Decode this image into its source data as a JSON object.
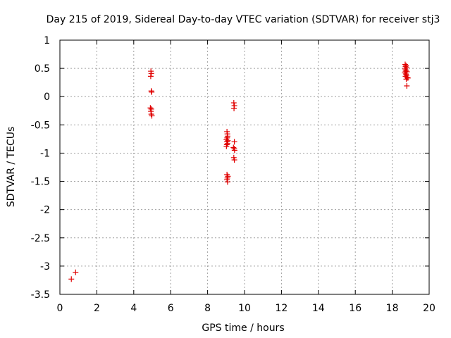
{
  "chart_data": {
    "type": "scatter",
    "title": "Day 215 of 2019, Sidereal Day-to-day VTEC variation (SDTVAR) for receiver stj3",
    "xlabel": "GPS time / hours",
    "ylabel": "SDTVAR / TECUs",
    "xlim": [
      0,
      20
    ],
    "ylim": [
      -3.5,
      1
    ],
    "grid": true,
    "marker": "+",
    "color": "#e00000",
    "x_ticks": [
      "0",
      "2",
      "4",
      "6",
      "8",
      "10",
      "12",
      "14",
      "16",
      "18",
      "20"
    ],
    "y_ticks": [
      "1",
      "0.5",
      "0",
      "-0.5",
      "-1",
      "-1.5",
      "-2",
      "-2.5",
      "-3",
      "-3.5"
    ],
    "series": [
      {
        "name": "SDTVAR",
        "points": [
          [
            0.62,
            -3.23
          ],
          [
            0.85,
            -3.11
          ],
          [
            4.93,
            0.45
          ],
          [
            4.95,
            0.41
          ],
          [
            4.92,
            0.36
          ],
          [
            4.95,
            0.1
          ],
          [
            4.97,
            0.08
          ],
          [
            4.9,
            -0.2
          ],
          [
            4.95,
            -0.22
          ],
          [
            4.93,
            -0.26
          ],
          [
            4.95,
            -0.31
          ],
          [
            4.98,
            -0.34
          ],
          [
            9.05,
            -0.62
          ],
          [
            9.07,
            -0.66
          ],
          [
            9.08,
            -0.7
          ],
          [
            9.06,
            -0.73
          ],
          [
            9.02,
            -0.76
          ],
          [
            9.1,
            -0.78
          ],
          [
            9.05,
            -0.8
          ],
          [
            9.08,
            -0.83
          ],
          [
            9.04,
            -0.85
          ],
          [
            9.02,
            -0.88
          ],
          [
            9.05,
            -1.38
          ],
          [
            9.1,
            -1.41
          ],
          [
            9.07,
            -1.44
          ],
          [
            9.05,
            -1.47
          ],
          [
            9.08,
            -1.51
          ],
          [
            9.42,
            -0.11
          ],
          [
            9.45,
            -0.16
          ],
          [
            9.43,
            -0.21
          ],
          [
            9.45,
            -0.8
          ],
          [
            9.4,
            -0.9
          ],
          [
            9.44,
            -0.92
          ],
          [
            9.46,
            -0.95
          ],
          [
            9.42,
            -1.08
          ],
          [
            9.45,
            -1.12
          ],
          [
            18.7,
            0.57
          ],
          [
            18.75,
            0.55
          ],
          [
            18.72,
            0.53
          ],
          [
            18.78,
            0.51
          ],
          [
            18.7,
            0.49
          ],
          [
            18.76,
            0.47
          ],
          [
            18.72,
            0.45
          ],
          [
            18.8,
            0.44
          ],
          [
            18.68,
            0.42
          ],
          [
            18.74,
            0.4
          ],
          [
            18.78,
            0.38
          ],
          [
            18.72,
            0.36
          ],
          [
            18.8,
            0.34
          ],
          [
            18.85,
            0.33
          ],
          [
            18.76,
            0.31
          ],
          [
            18.79,
            0.19
          ]
        ]
      }
    ]
  }
}
